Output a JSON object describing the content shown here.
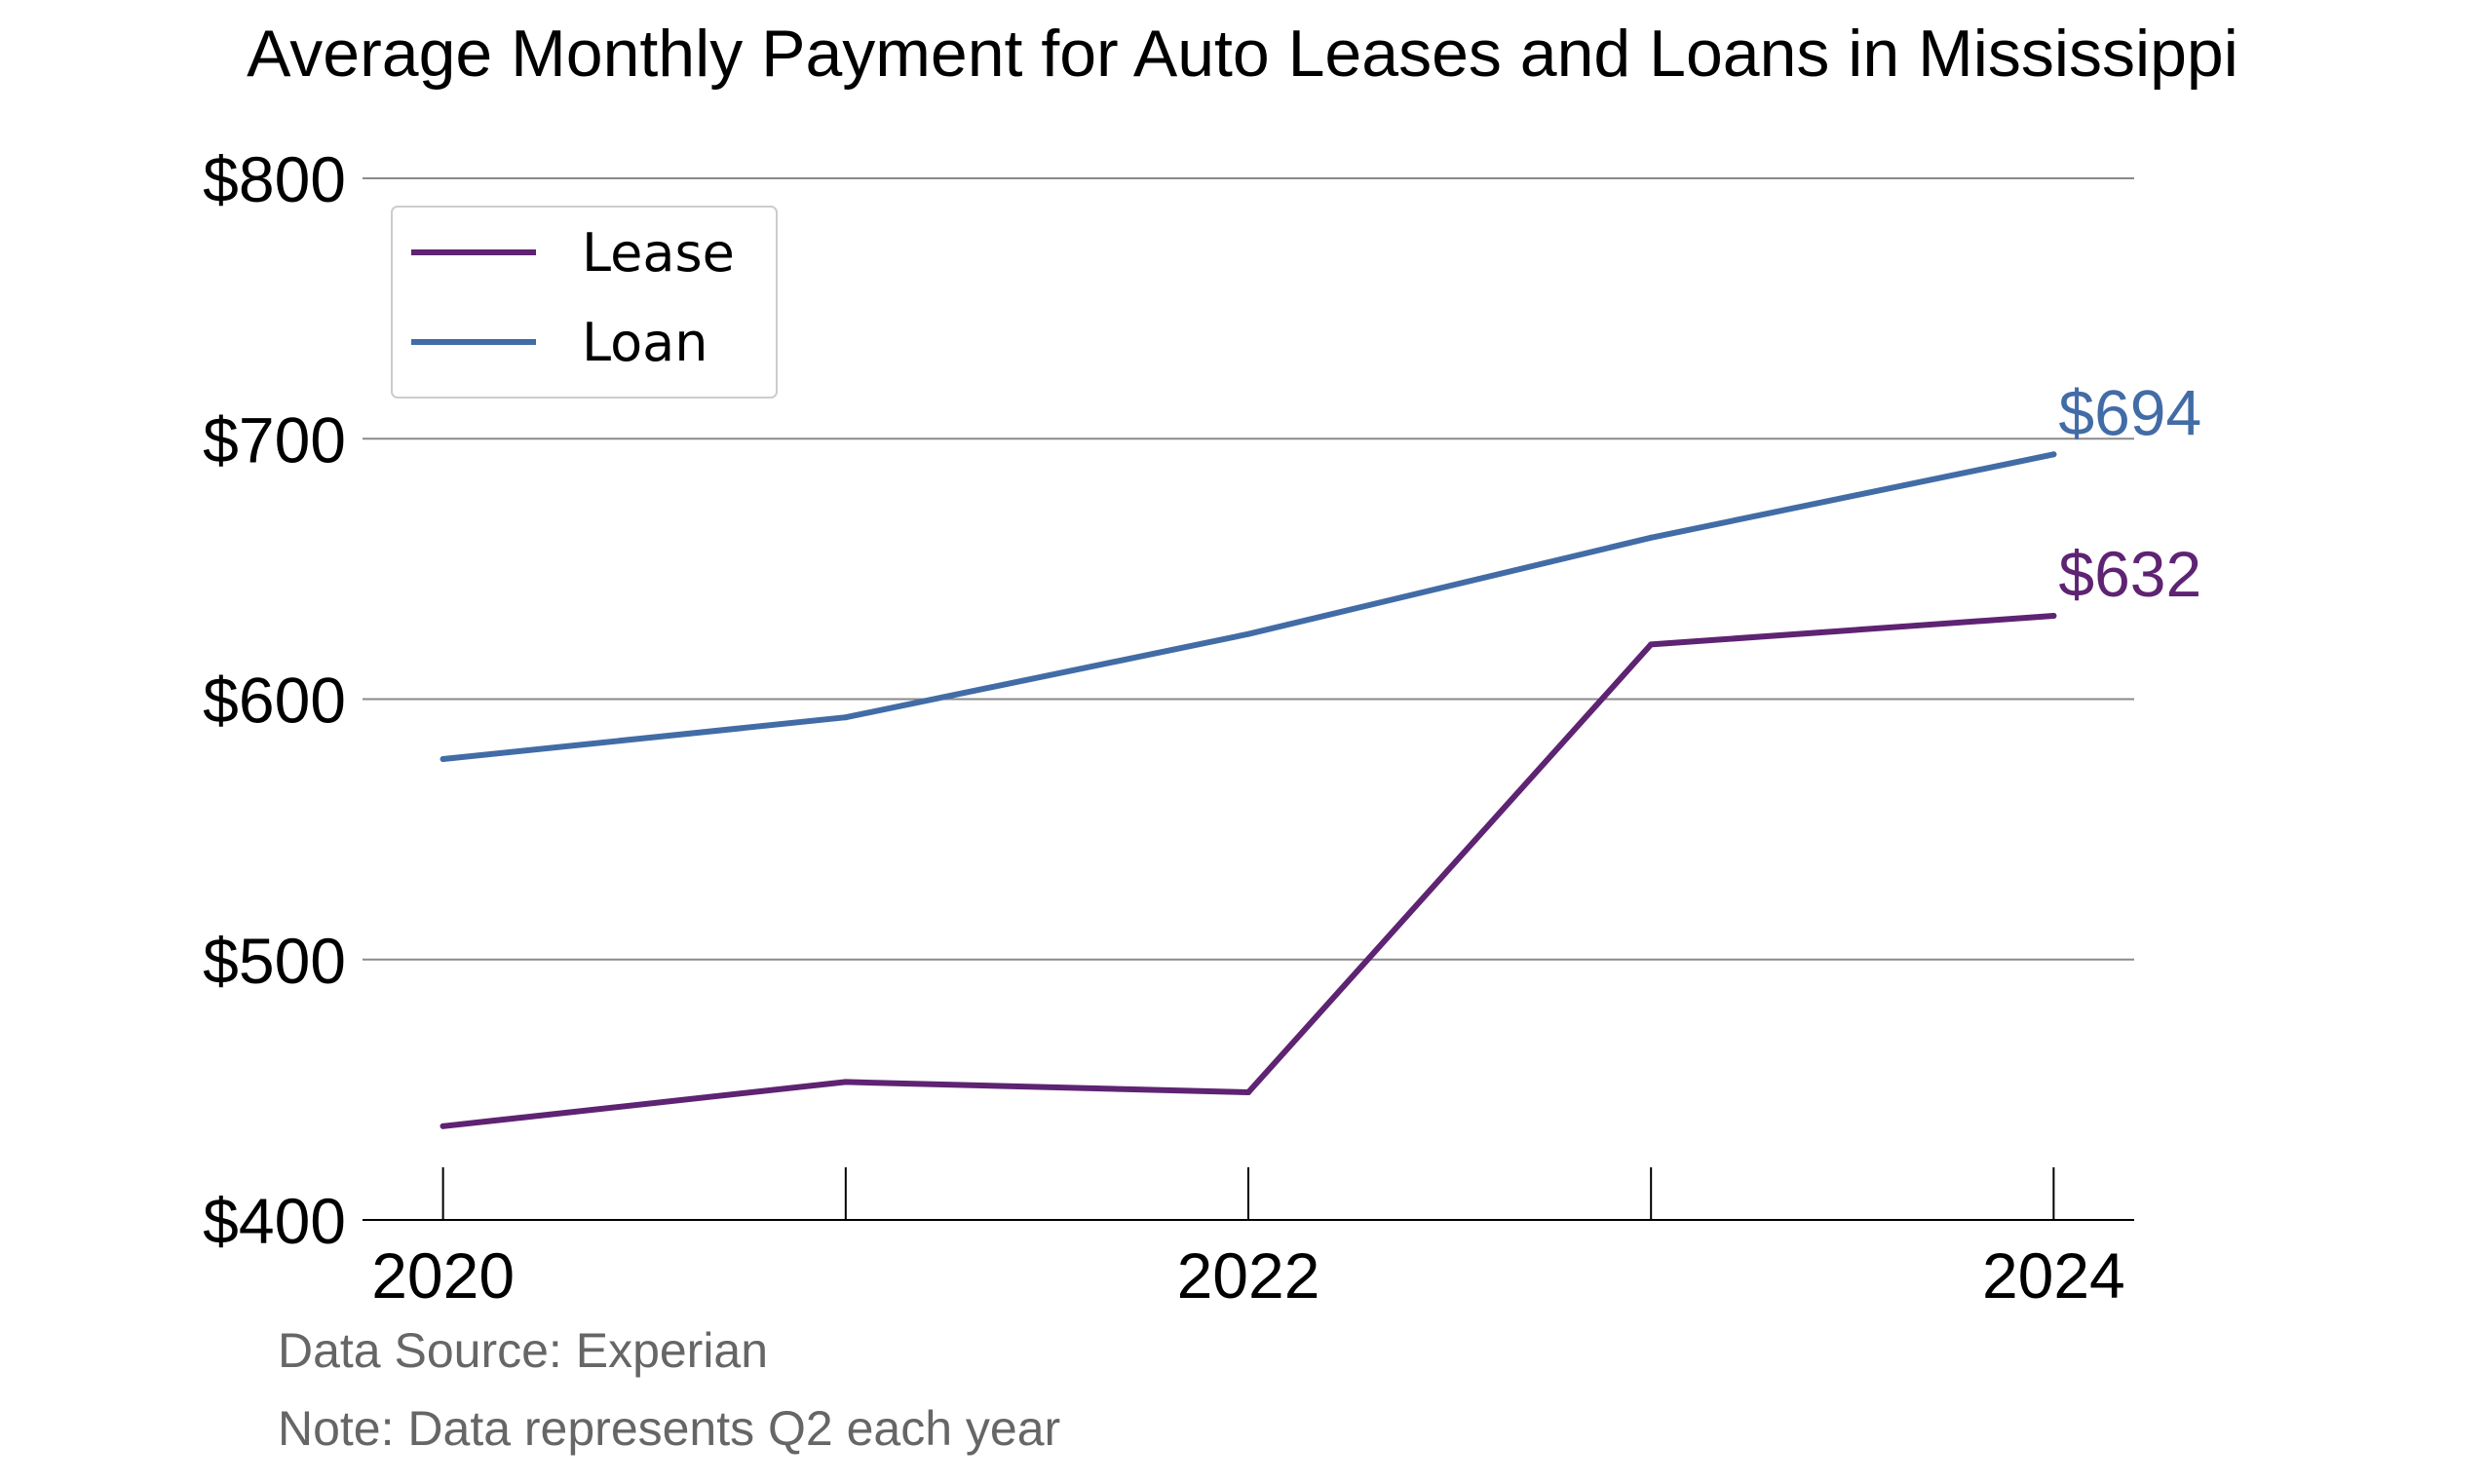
{
  "chart_data": {
    "type": "line",
    "title": "Average Monthly Payment for Auto Leases and Loans in Mississippi",
    "xlabel": "",
    "ylabel": "",
    "x": [
      2020,
      2021,
      2022,
      2023,
      2024
    ],
    "x_tick_values": [
      2020,
      2022,
      2024
    ],
    "x_tick_labels": [
      "2020",
      "2022",
      "2024"
    ],
    "xlim": [
      2019.8,
      2024.2
    ],
    "y_ticks": [
      400,
      500,
      600,
      700,
      800
    ],
    "y_tick_labels": [
      "$400",
      "$500",
      "$600",
      "$700",
      "$800"
    ],
    "ylim": [
      400,
      800
    ],
    "grid": "horizontal",
    "legend_position": "top-left",
    "series": [
      {
        "name": "Lease",
        "values": [
          436,
          453,
          449,
          621,
          632
        ],
        "color": "#5e2372",
        "end_label": "$632"
      },
      {
        "name": "Loan",
        "values": [
          577,
          593,
          625,
          662,
          694
        ],
        "color": "#426ca6",
        "end_label": "$694"
      }
    ],
    "notes": [
      "Data Source: Experian",
      "Note: Data represents Q2 each year"
    ]
  }
}
